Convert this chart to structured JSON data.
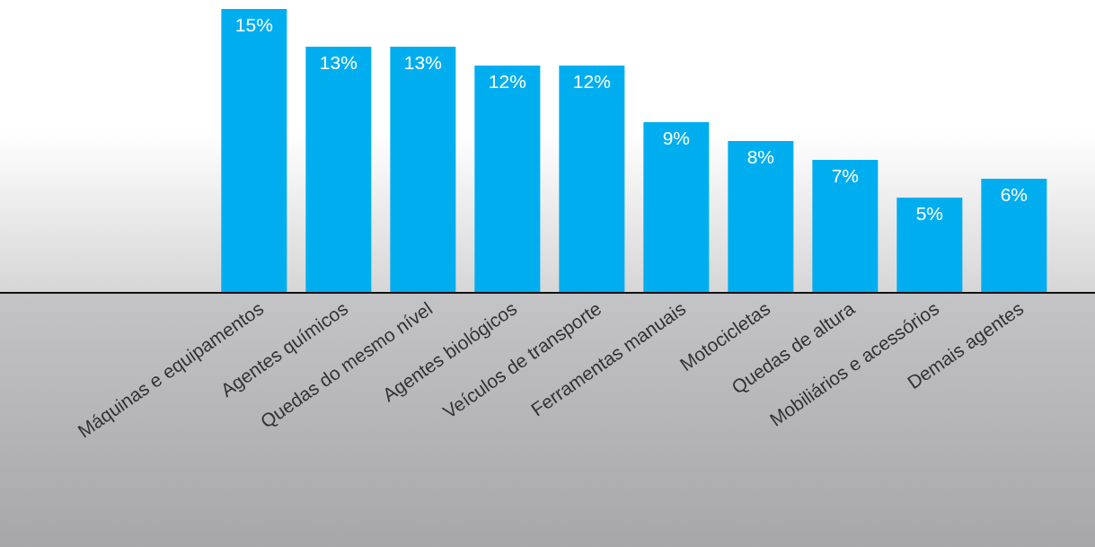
{
  "chart_data": {
    "type": "bar",
    "categories": [
      "Máquinas e equipamentos",
      "Agentes químicos",
      "Quedas do mesmo nível",
      "Agentes biológicos",
      "Veículos de transporte",
      "Ferramentas manuais",
      "Motocicletas",
      "Quedas de altura",
      "Mobiliários e acessórios",
      "Demais agentes"
    ],
    "values": [
      15,
      13,
      13,
      12,
      12,
      9,
      8,
      7,
      5,
      6
    ],
    "value_labels": [
      "15%",
      "13%",
      "13%",
      "12%",
      "12%",
      "9%",
      "8%",
      "7%",
      "5%",
      "6%"
    ],
    "color": "#00aeef"
  }
}
